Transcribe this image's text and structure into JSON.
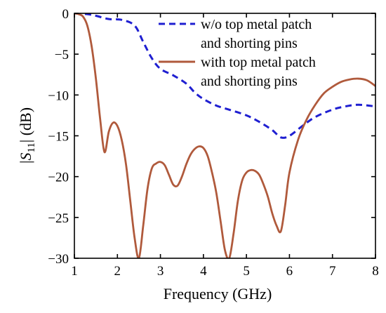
{
  "chart_data": {
    "type": "line",
    "title": "",
    "xlabel": "Frequency (GHz)",
    "ylabel": {
      "prefix": "|",
      "symbol": "S",
      "subscript": "11",
      "suffix": "| (dB)"
    },
    "xlim": [
      1,
      8
    ],
    "ylim": [
      -30,
      0
    ],
    "xticks": [
      1,
      2,
      3,
      4,
      5,
      6,
      7,
      8
    ],
    "yticks": [
      0,
      -5,
      -10,
      -15,
      -20,
      -25,
      -30
    ],
    "grid": false,
    "legend_position": "top-right",
    "series": [
      {
        "name_lines": [
          "w/o top metal patch",
          "and shorting pins"
        ],
        "color": "#1f1fd1",
        "style": "dashed",
        "x": [
          1.0,
          1.3,
          1.5,
          1.8,
          2.1,
          2.4,
          2.6,
          2.8,
          3.0,
          3.3,
          3.6,
          3.8,
          4.0,
          4.3,
          4.6,
          5.0,
          5.3,
          5.6,
          5.8,
          6.0,
          6.3,
          6.6,
          7.0,
          7.3,
          7.6,
          8.0
        ],
        "y": [
          0,
          -0.1,
          -0.3,
          -0.7,
          -0.8,
          -1.5,
          -3.5,
          -5.5,
          -6.8,
          -7.6,
          -8.6,
          -9.7,
          -10.5,
          -11.3,
          -11.8,
          -12.5,
          -13.3,
          -14.3,
          -15.2,
          -15.0,
          -13.8,
          -12.7,
          -11.8,
          -11.4,
          -11.2,
          -11.4
        ]
      },
      {
        "name_lines": [
          "with top metal patch",
          "and shorting pins"
        ],
        "color": "#b05a3c",
        "style": "solid",
        "x": [
          1.0,
          1.1,
          1.2,
          1.3,
          1.4,
          1.5,
          1.6,
          1.7,
          1.8,
          1.9,
          2.0,
          2.1,
          2.2,
          2.3,
          2.4,
          2.5,
          2.6,
          2.7,
          2.8,
          2.9,
          3.0,
          3.1,
          3.2,
          3.3,
          3.4,
          3.5,
          3.6,
          3.7,
          3.8,
          3.9,
          4.0,
          4.1,
          4.2,
          4.3,
          4.4,
          4.5,
          4.6,
          4.7,
          4.8,
          4.9,
          5.0,
          5.1,
          5.2,
          5.3,
          5.4,
          5.5,
          5.6,
          5.7,
          5.8,
          5.9,
          6.0,
          6.2,
          6.4,
          6.6,
          6.8,
          7.0,
          7.2,
          7.4,
          7.6,
          7.8,
          8.0
        ],
        "y": [
          0,
          -0.1,
          -0.4,
          -1.5,
          -4.0,
          -8.0,
          -13.0,
          -17.0,
          -14.5,
          -13.4,
          -13.8,
          -15.5,
          -18.5,
          -23.0,
          -27.5,
          -30.0,
          -26.0,
          -21.5,
          -19.0,
          -18.4,
          -18.2,
          -18.6,
          -19.8,
          -21.0,
          -21.1,
          -20.0,
          -18.5,
          -17.3,
          -16.6,
          -16.3,
          -16.5,
          -17.5,
          -19.5,
          -22.0,
          -25.5,
          -29.0,
          -30.0,
          -27.0,
          -23.0,
          -20.5,
          -19.5,
          -19.2,
          -19.3,
          -19.8,
          -21.0,
          -22.5,
          -24.5,
          -26.0,
          -26.7,
          -23.5,
          -19.5,
          -15.5,
          -13.0,
          -11.2,
          -9.8,
          -9.0,
          -8.4,
          -8.1,
          -8.0,
          -8.2,
          -8.9
        ]
      }
    ]
  }
}
